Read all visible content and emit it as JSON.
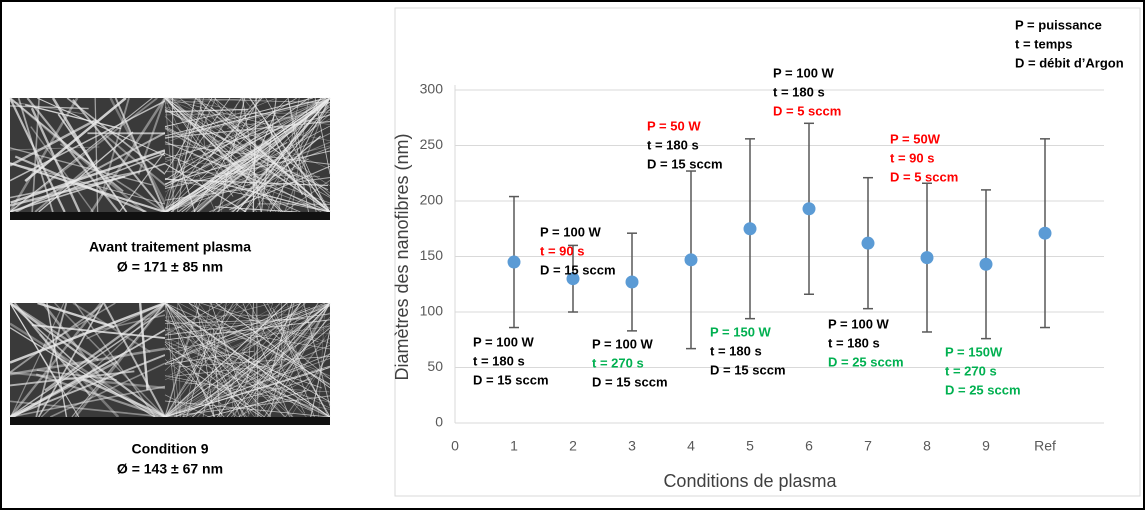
{
  "panels": [
    {
      "caption": "Avant traitement plasma",
      "diameter": "Ø = 171 ± 85 nm"
    },
    {
      "caption": "Condition 9",
      "diameter": "Ø = 143 ± 67 nm"
    }
  ],
  "chart_data": {
    "type": "scatter",
    "y_label": "Diamètres des nanofibres (nm)",
    "x_label": "Conditions de plasma",
    "x": [
      1,
      2,
      3,
      4,
      5,
      6,
      7,
      8,
      9,
      10
    ],
    "values": [
      145,
      130,
      127,
      147,
      175,
      193,
      162,
      149,
      143,
      171
    ],
    "errors": [
      59,
      30,
      44,
      80,
      81,
      77,
      59,
      67,
      67,
      85
    ],
    "color": "#5b9bd5",
    "error_color": "#595959",
    "xlim": [
      0,
      11
    ],
    "xticks": [
      0,
      1,
      2,
      3,
      4,
      5,
      6,
      7,
      8,
      9,
      {
        "value": 10,
        "label": "Ref"
      }
    ],
    "ylim": [
      0,
      300
    ],
    "yticks": [
      0,
      50,
      100,
      150,
      200,
      250,
      300
    ],
    "grid": true,
    "legend": [
      "P = puissance",
      "t = temps",
      "D = débit d’Argon"
    ],
    "annotations": [
      [
        {
          "text": "P = 100 W",
          "color": "#000000"
        },
        {
          "text": "t = 180 s",
          "color": "#000000"
        },
        {
          "text": "D = 15 sccm",
          "color": "#000000"
        }
      ],
      [
        {
          "text": "P = 100 W",
          "color": "#000000"
        },
        {
          "text": "t = 90 s",
          "color": "#ff0000"
        },
        {
          "text": "D = 15 sccm",
          "color": "#000000"
        }
      ],
      [
        {
          "text": "P = 100 W",
          "color": "#000000"
        },
        {
          "text": "t = 270 s",
          "color": "#00b050"
        },
        {
          "text": "D = 15 sccm",
          "color": "#000000"
        }
      ],
      [
        {
          "text": "P = 50 W",
          "color": "#ff0000"
        },
        {
          "text": "t = 180 s",
          "color": "#000000"
        },
        {
          "text": "D = 15 sccm",
          "color": "#000000"
        }
      ],
      [
        {
          "text": "P = 150 W",
          "color": "#00b050"
        },
        {
          "text": "t = 180 s",
          "color": "#000000"
        },
        {
          "text": "D = 15 sccm",
          "color": "#000000"
        }
      ],
      [
        {
          "text": "P = 100 W",
          "color": "#000000"
        },
        {
          "text": "t = 180 s",
          "color": "#000000"
        },
        {
          "text": "D = 5 sccm",
          "color": "#ff0000"
        }
      ],
      [
        {
          "text": "P = 100 W",
          "color": "#000000"
        },
        {
          "text": "t = 180 s",
          "color": "#000000"
        },
        {
          "text": "D = 25 sccm",
          "color": "#00b050"
        }
      ],
      [
        {
          "text": "P = 50W",
          "color": "#ff0000"
        },
        {
          "text": "t = 90 s",
          "color": "#ff0000"
        },
        {
          "text": "D = 5 sccm",
          "color": "#ff0000"
        }
      ],
      [
        {
          "text": "P = 150W",
          "color": "#00b050"
        },
        {
          "text": "t = 270 s",
          "color": "#00b050"
        },
        {
          "text": "D = 25 sccm",
          "color": "#00b050"
        }
      ]
    ]
  }
}
